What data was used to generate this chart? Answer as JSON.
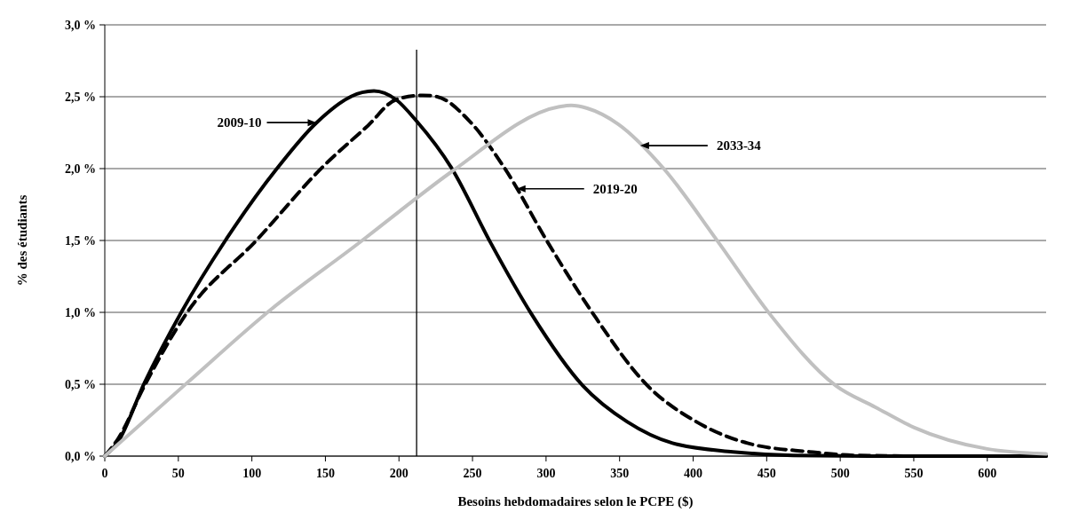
{
  "chart_data": {
    "type": "line",
    "xlabel": "Besoins hebdomadaires selon le PCPE ($)",
    "ylabel": "% des étudiants",
    "xlim": [
      0,
      640
    ],
    "xticks": [
      0,
      50,
      100,
      150,
      200,
      250,
      300,
      350,
      400,
      450,
      500,
      550,
      600
    ],
    "ylim": [
      0,
      3
    ],
    "yticks": [
      {
        "value": 0,
        "label": "0,0 %"
      },
      {
        "value": 0.5,
        "label": "0,5 %"
      },
      {
        "value": 1,
        "label": "1,0 %"
      },
      {
        "value": 1.5,
        "label": "1,5 %"
      },
      {
        "value": 2,
        "label": "2,0 %"
      },
      {
        "value": 2.5,
        "label": "2,5 %"
      },
      {
        "value": 3,
        "label": "3,0 %"
      }
    ],
    "grid": "y",
    "marker": "none",
    "series": [
      {
        "color": "#000000",
        "line_style": "solid",
        "x": [
          0,
          9,
          27,
          52,
          82,
          117,
          144,
          175,
          183,
          198,
          212,
          236,
          262,
          290,
          325,
          355,
          386,
          427,
          468,
          520,
          640
        ],
        "values": [
          0,
          0.1,
          0.51,
          1.0,
          1.5,
          2.0,
          2.32,
          2.53,
          2.54,
          2.48,
          2.33,
          2.0,
          1.49,
          0.99,
          0.49,
          0.24,
          0.09,
          0.03,
          0.005,
          0,
          0
        ]
      },
      {
        "color": "#000000",
        "line_style": "dashed",
        "x": [
          0,
          9,
          27,
          56,
          103,
          148,
          179,
          198,
          216,
          226,
          248,
          272,
          301,
          332,
          369,
          402,
          437,
          479,
          510,
          560,
          640
        ],
        "values": [
          0,
          0.12,
          0.49,
          1.0,
          1.5,
          2.01,
          2.3,
          2.48,
          2.51,
          2.5,
          2.33,
          2.0,
          1.49,
          0.99,
          0.49,
          0.24,
          0.09,
          0.03,
          0.005,
          0,
          0
        ]
      },
      {
        "color": "#c0c0c0",
        "line_style": "solid",
        "x": [
          0,
          56,
          113,
          175,
          200,
          236,
          309,
          317,
          328,
          349,
          380,
          417,
          452,
          497,
          524,
          550,
          600,
          640
        ],
        "values": [
          0,
          0.51,
          1.02,
          1.5,
          1.7,
          1.98,
          2.43,
          2.44,
          2.42,
          2.31,
          2.0,
          1.49,
          0.99,
          0.49,
          0.34,
          0.2,
          0.05,
          0.015
        ]
      }
    ],
    "ref_lines": [
      {
        "axis": "x",
        "value": 212,
        "color": "#000000"
      }
    ],
    "annotations": [
      "2009-10",
      "2019-20",
      "2033-34"
    ]
  }
}
